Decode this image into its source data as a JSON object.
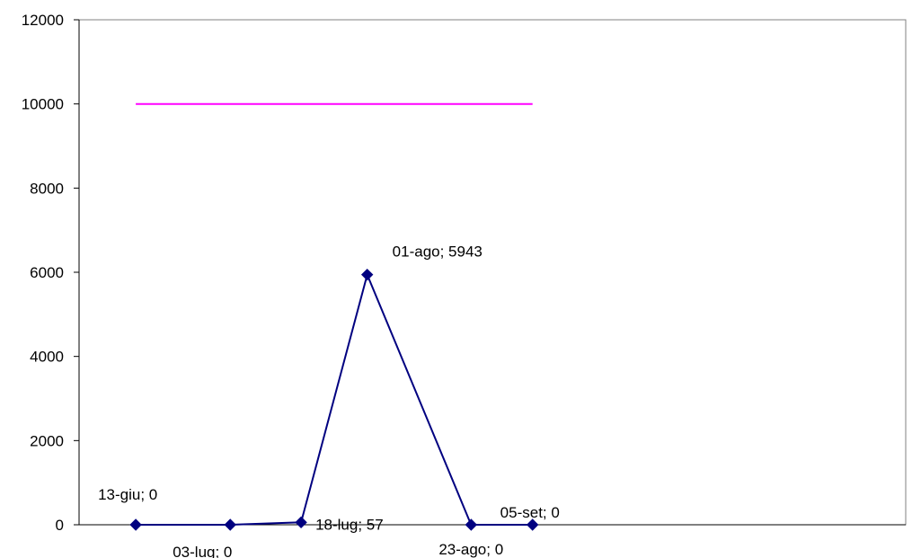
{
  "chart_data": {
    "type": "line",
    "title": "",
    "xlabel": "",
    "ylabel": "",
    "ylim": [
      0,
      12000
    ],
    "yticks": [
      0,
      2000,
      4000,
      6000,
      8000,
      10000,
      12000
    ],
    "ytick_labels": [
      "0",
      "2000",
      "4000",
      "6000",
      "8000",
      "10000",
      "12000"
    ],
    "x_dates": [
      "2007-06-13",
      "2007-07-03",
      "2007-07-18",
      "2007-08-01",
      "2007-08-23",
      "2007-09-05"
    ],
    "x_range": [
      "2007-06-01",
      "2007-11-23"
    ],
    "grid": false,
    "legend": "none",
    "series": [
      {
        "color": "#000080",
        "marker": "diamond",
        "x": [
          "2007-06-13",
          "2007-07-03",
          "2007-07-18",
          "2007-08-01",
          "2007-08-23",
          "2007-09-05"
        ],
        "values": [
          0,
          0,
          57,
          5943,
          0,
          0
        ],
        "labels": [
          "13-giu; 0",
          "03-lug; 0",
          "18-lug; 57",
          "01-ago; 5943",
          "23-ago; 0",
          "05-set; 0"
        ]
      },
      {
        "color": "#ff00ff",
        "marker": "none",
        "x": [
          "2007-06-13",
          "2007-09-05"
        ],
        "values": [
          10000,
          10000
        ]
      }
    ]
  }
}
